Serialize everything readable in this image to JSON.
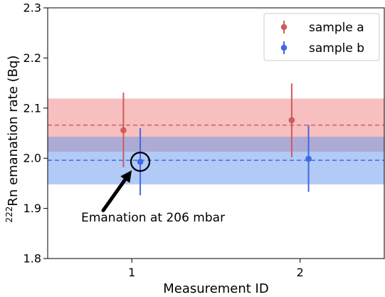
{
  "chart_data": {
    "type": "scatter",
    "xlabel": "Measurement ID",
    "ylabel_superscript": "222",
    "ylabel_main": "Rn emanation rate (Bq)",
    "xlim": [
      0.5,
      2.5
    ],
    "ylim": [
      1.8,
      2.3
    ],
    "x_ticks": [
      1,
      2
    ],
    "x_tick_labels": [
      "1",
      "2"
    ],
    "y_ticks": [
      1.8,
      1.9,
      2.0,
      2.1,
      2.2,
      2.3
    ],
    "y_tick_labels": [
      "1.8",
      "1.9",
      "2.0",
      "2.1",
      "2.2",
      "2.3"
    ],
    "grid": false,
    "legend_position": "top-right",
    "series": [
      {
        "name": "sample a",
        "color": "#cd5c5c",
        "points": [
          {
            "x": 0.95,
            "y": 2.056,
            "yerr_low": 1.982,
            "yerr_high": 2.131
          },
          {
            "x": 1.95,
            "y": 2.076,
            "yerr_low": 2.002,
            "yerr_high": 2.149
          }
        ],
        "mean": 2.066,
        "band": [
          2.013,
          2.119
        ],
        "band_color": "#f08080"
      },
      {
        "name": "sample b",
        "color": "#4169e1",
        "points": [
          {
            "x": 1.05,
            "y": 1.993,
            "yerr_low": 1.926,
            "yerr_high": 2.06
          },
          {
            "x": 2.05,
            "y": 1.999,
            "yerr_low": 1.933,
            "yerr_high": 2.066
          }
        ],
        "mean": 1.996,
        "band": [
          1.948,
          2.043
        ],
        "band_color": "#6495ed"
      }
    ],
    "annotation": {
      "text": "Emanation at 206 mbar",
      "target_x": 1.05,
      "target_y": 1.993,
      "text_x": 1.05,
      "text_y": 1.86,
      "arrow_tail_x": 0.83,
      "arrow_tail_y": 1.896
    }
  }
}
